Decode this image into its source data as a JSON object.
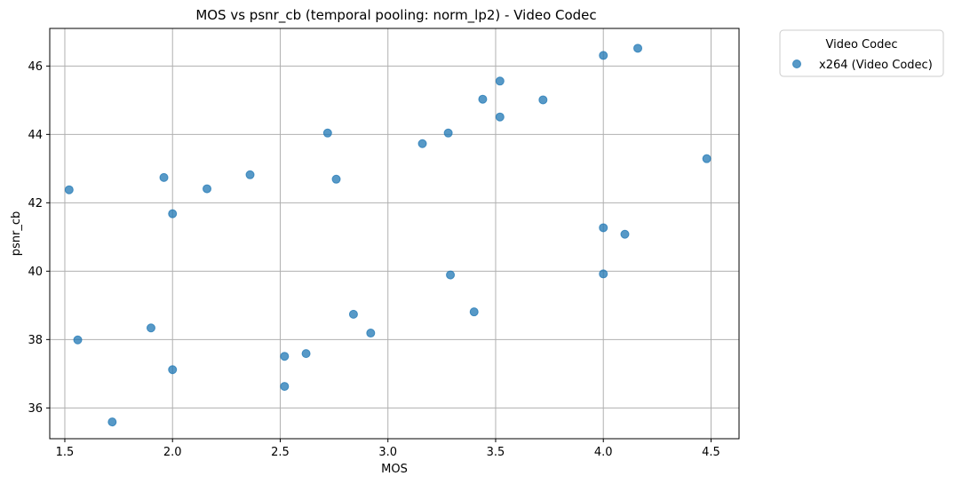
{
  "chart_data": {
    "type": "scatter",
    "title": "MOS vs psnr_cb (temporal pooling: norm_lp2) - Video Codec",
    "xlabel": "MOS",
    "ylabel": "psnr_cb",
    "xlim": [
      1.43,
      4.63
    ],
    "ylim": [
      35.1,
      47.1
    ],
    "xticks": [
      1.5,
      2.0,
      2.5,
      3.0,
      3.5,
      4.0,
      4.5
    ],
    "xtick_labels": [
      "1.5",
      "2.0",
      "2.5",
      "3.0",
      "3.5",
      "4.0",
      "4.5"
    ],
    "yticks": [
      36,
      38,
      40,
      42,
      44,
      46
    ],
    "ytick_labels": [
      "36",
      "38",
      "40",
      "42",
      "44",
      "46"
    ],
    "grid": true,
    "legend_title": "Video Codec",
    "legend_position": "outside-top-right",
    "series": [
      {
        "name": "x264 (Video Codec)",
        "color": "#1f77b4",
        "points": [
          [
            1.52,
            42.38
          ],
          [
            1.56,
            37.99
          ],
          [
            1.72,
            35.59
          ],
          [
            1.9,
            38.34
          ],
          [
            1.96,
            42.74
          ],
          [
            2.0,
            41.68
          ],
          [
            2.0,
            37.12
          ],
          [
            2.16,
            42.41
          ],
          [
            2.36,
            42.82
          ],
          [
            2.52,
            37.51
          ],
          [
            2.52,
            36.63
          ],
          [
            2.62,
            37.59
          ],
          [
            2.72,
            44.04
          ],
          [
            2.76,
            42.69
          ],
          [
            2.84,
            38.74
          ],
          [
            2.92,
            38.19
          ],
          [
            3.16,
            43.73
          ],
          [
            3.28,
            44.04
          ],
          [
            3.29,
            39.89
          ],
          [
            3.4,
            38.81
          ],
          [
            3.44,
            45.03
          ],
          [
            3.52,
            45.56
          ],
          [
            3.52,
            44.51
          ],
          [
            3.72,
            45.01
          ],
          [
            4.0,
            46.31
          ],
          [
            4.0,
            41.27
          ],
          [
            4.0,
            39.92
          ],
          [
            4.1,
            41.08
          ],
          [
            4.16,
            46.52
          ],
          [
            4.48,
            43.29
          ]
        ]
      }
    ]
  }
}
